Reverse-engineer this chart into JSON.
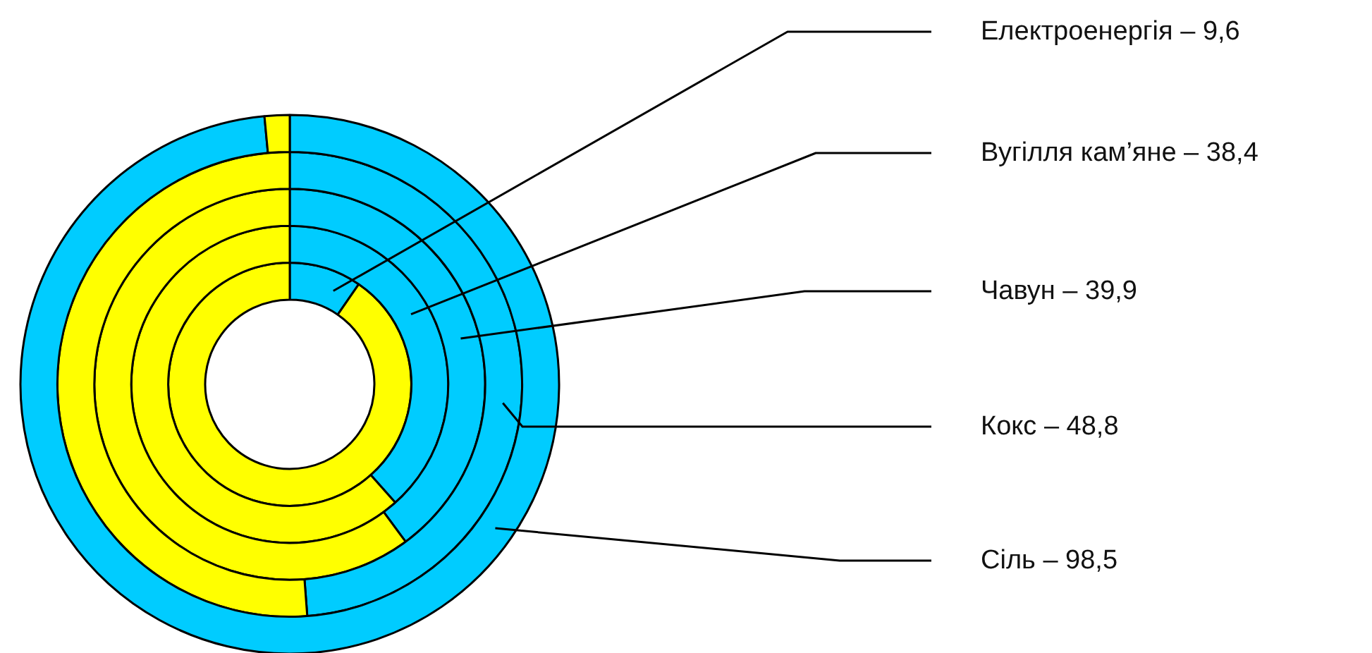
{
  "chart_data": {
    "type": "donut",
    "categories": [
      null,
      null
    ],
    "colors": [
      "#00ccff",
      "#ffff00"
    ],
    "series": [
      {
        "values": [
          9.6,
          90.4
        ]
      },
      {
        "values": [
          38.4,
          61.6
        ]
      },
      {
        "values": [
          39.9,
          60.1
        ]
      },
      {
        "values": [
          48.8,
          51.2
        ]
      },
      {
        "values": [
          98.5,
          1.5
        ]
      }
    ],
    "annotations": [
      "Електроенергія – 9,6",
      "Вугілля кам’яне – 38,4",
      "Чавун – 39,9",
      "Кокс – 48,8",
      "Сіль – 98,5"
    ]
  }
}
